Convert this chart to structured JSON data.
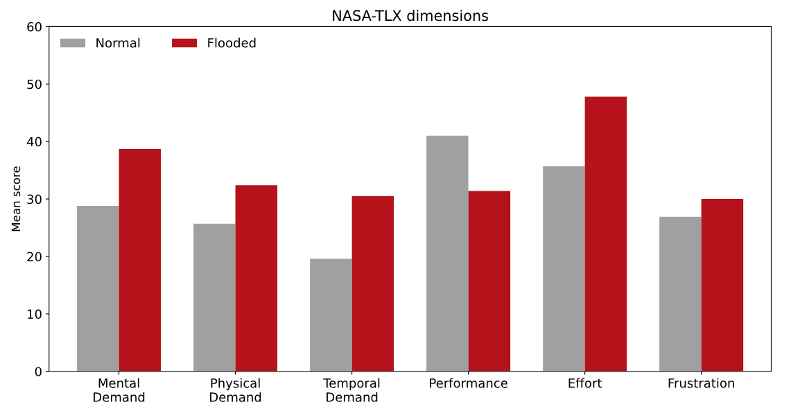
{
  "chart_data": {
    "type": "bar",
    "title": "NASA-TLX dimensions",
    "ylabel": "Mean score",
    "categories": [
      "Mental\nDemand",
      "Physical\nDemand",
      "Temporal\nDemand",
      "Performance",
      "Effort",
      "Frustration"
    ],
    "series": [
      {
        "name": "Normal",
        "color": "#a0a0a0",
        "values": [
          28.8,
          25.7,
          19.6,
          41.0,
          35.7,
          26.9
        ]
      },
      {
        "name": "Flooded",
        "color": "#b5121b",
        "values": [
          38.7,
          32.4,
          30.5,
          31.4,
          47.8,
          30.0
        ]
      }
    ],
    "ylim": [
      0,
      60
    ],
    "yticks": [
      0,
      10,
      20,
      30,
      40,
      50,
      60
    ],
    "grid": false,
    "legend": "top left"
  }
}
